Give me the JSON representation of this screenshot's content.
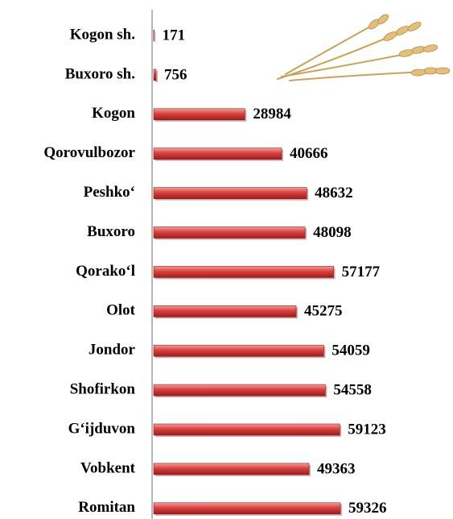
{
  "chart_data": {
    "type": "bar",
    "orientation": "horizontal",
    "categories": [
      "Kogon sh.",
      "Buxoro sh.",
      "Kogon",
      "Qorovulbozor",
      "Peshko‘",
      "Buxoro",
      "Qorako‘l",
      "Olot",
      "Jondor",
      "Shofirkon",
      "G‘ijduvon",
      "Vobkent",
      "Romitan"
    ],
    "values": [
      171,
      756,
      28984,
      40666,
      48632,
      48098,
      57177,
      45275,
      54059,
      54558,
      59123,
      49363,
      59326
    ],
    "color": "#d9403f"
  }
}
